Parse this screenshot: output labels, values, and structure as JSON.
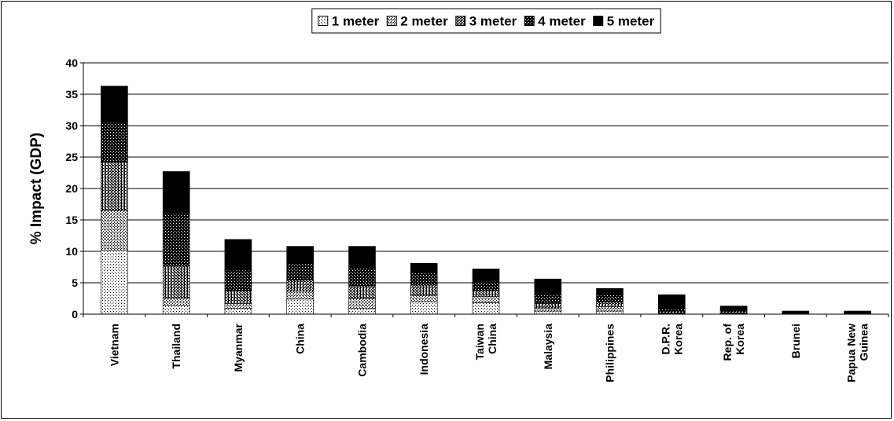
{
  "chart_data": {
    "type": "bar",
    "stacked": true,
    "ylabel": "% Impact (GDP)",
    "xlabel": "",
    "ylim": [
      0,
      40
    ],
    "yticks": [
      0,
      5,
      10,
      15,
      20,
      25,
      30,
      35,
      40
    ],
    "grid": "horizontal",
    "legend_position": "top-center",
    "categories": [
      [
        "Vietnam"
      ],
      [
        "Thailand"
      ],
      [
        "Myanmar"
      ],
      [
        "China"
      ],
      [
        "Cambodia"
      ],
      [
        "Indonesia"
      ],
      [
        "Taiwan",
        "China"
      ],
      [
        "Malaysia"
      ],
      [
        "Philippines"
      ],
      [
        "D.P.R.",
        "Korea"
      ],
      [
        "Rep. of",
        "Korea"
      ],
      [
        "Brunei"
      ],
      [
        "Papua New",
        "Guinea"
      ]
    ],
    "series": [
      {
        "name": "1 meter",
        "pattern": "dots-sparse",
        "values": [
          10.2,
          1.4,
          0.9,
          2.4,
          0.9,
          2.0,
          1.8,
          0.5,
          0.5,
          0.1,
          0.1,
          0.05,
          0.05
        ]
      },
      {
        "name": "2 meter",
        "pattern": "cross-light",
        "values": [
          6.3,
          1.2,
          0.8,
          1.3,
          1.6,
          1.0,
          1.0,
          0.5,
          0.7,
          0.1,
          0.1,
          0.05,
          0.05
        ]
      },
      {
        "name": "3 meter",
        "pattern": "cross-medium",
        "values": [
          7.7,
          5.0,
          2.0,
          1.7,
          2.0,
          1.6,
          1.0,
          0.7,
          0.7,
          0.2,
          0.2,
          0.05,
          0.05
        ]
      },
      {
        "name": "4 meter",
        "pattern": "checker-dark",
        "values": [
          6.3,
          8.4,
          3.3,
          2.7,
          2.8,
          2.0,
          1.4,
          1.5,
          1.2,
          0.4,
          0.3,
          0.05,
          0.05
        ]
      },
      {
        "name": "5 meter",
        "pattern": "solid-black",
        "values": [
          5.8,
          6.7,
          4.9,
          2.7,
          3.5,
          1.5,
          2.0,
          2.4,
          1.0,
          2.3,
          0.6,
          0.3,
          0.3
        ]
      }
    ],
    "colors": {
      "axis": "#000000",
      "grid": "#000000",
      "bar_outline": "#000000",
      "background": "#ffffff"
    }
  }
}
